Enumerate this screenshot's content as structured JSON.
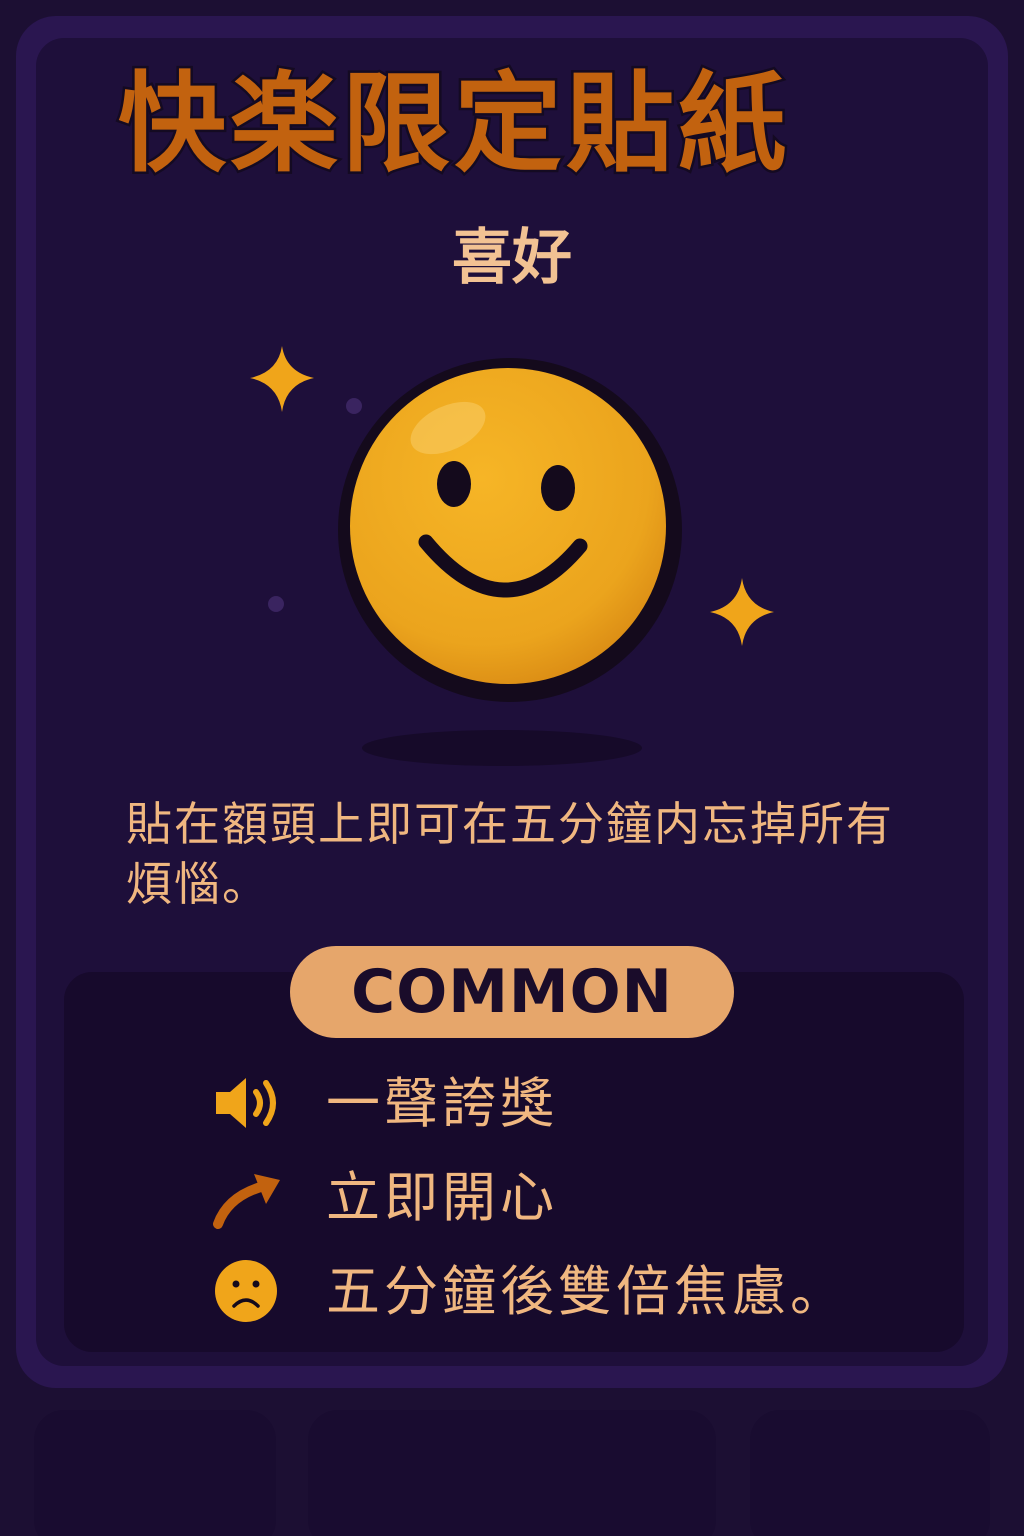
{
  "card": {
    "title": "快楽限定貼紙",
    "sticker_name": "喜好",
    "description": "貼在額頭上即可在五分鐘内忘掉所有煩惱。",
    "rarity": "COMMON"
  },
  "effects": [
    {
      "icon": "speaker-icon",
      "text": "一聲誇獎"
    },
    {
      "icon": "arrow-up-right-icon",
      "text": "立即開心"
    },
    {
      "icon": "sad-face-icon",
      "text": "五分鐘後雙倍焦慮。"
    }
  ],
  "colors": {
    "background": "#1c0f33",
    "card_frame": "#2a1650",
    "card_body": "#1e0f3a",
    "title": "#c2620f",
    "text": "#f0b780",
    "sticker_yellow": "#f0a51a",
    "sparkle": "#f0a51a",
    "rarity_pill": "#e6a66b"
  }
}
